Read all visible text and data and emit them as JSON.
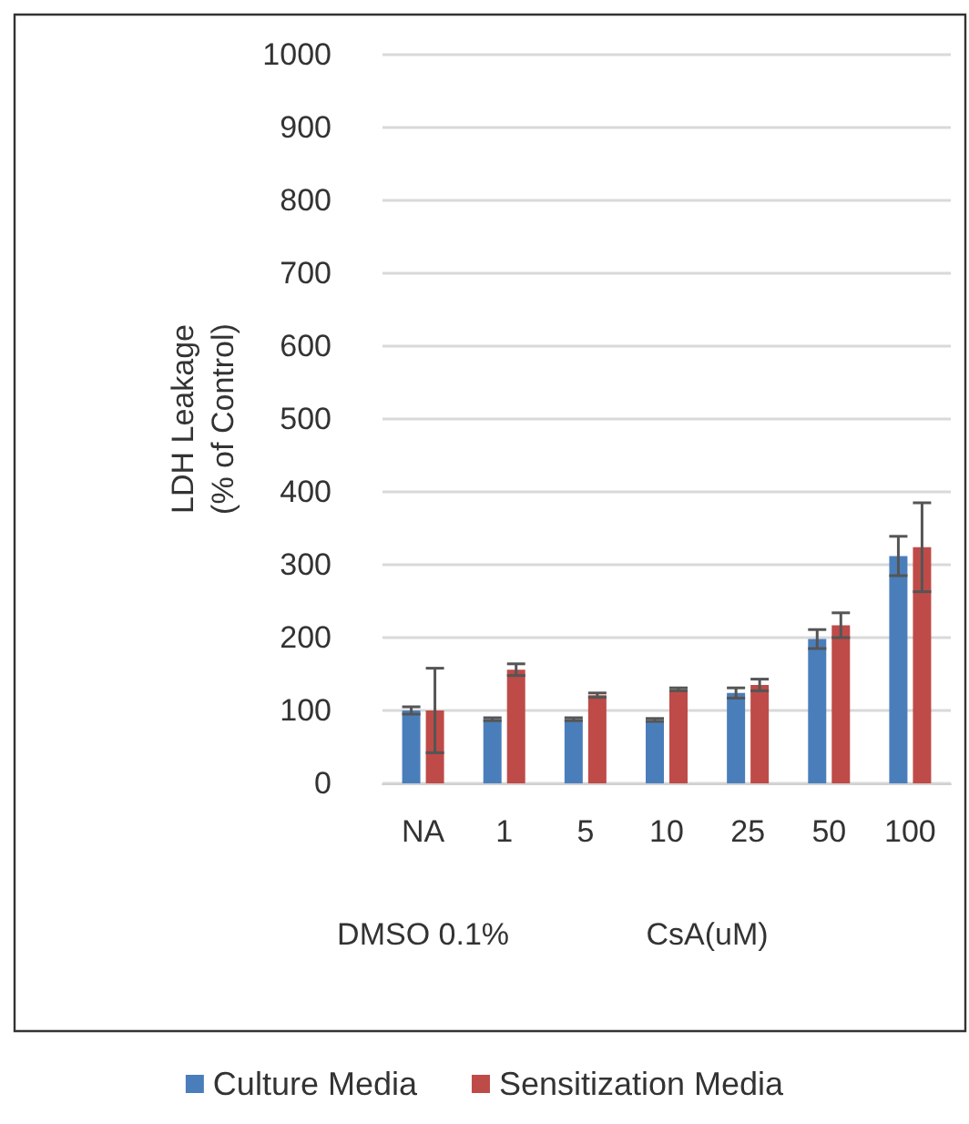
{
  "chart_data": {
    "type": "bar",
    "ylabel": "LDH Leakage\n(% of Control)",
    "categories": [
      "NA",
      "1",
      "5",
      "10",
      "25",
      "50",
      "100"
    ],
    "series": [
      {
        "name": "Culture Media",
        "color": "#4a7ebb",
        "values": [
          100,
          88,
          88,
          87,
          124,
          198,
          312
        ],
        "errors": [
          5,
          2,
          2,
          2,
          7,
          13,
          27
        ]
      },
      {
        "name": "Sensitization Media",
        "color": "#be4b48",
        "values": [
          100,
          156,
          121,
          129,
          135,
          217,
          324
        ],
        "errors": [
          58,
          8,
          3,
          2,
          8,
          17,
          61
        ]
      }
    ],
    "ylim": [
      0,
      1000
    ],
    "yticks": [
      0,
      100,
      200,
      300,
      400,
      500,
      600,
      700,
      800,
      900,
      1000
    ],
    "grid": "y",
    "legend": "bottom",
    "annotations": [
      "DMSO 0.1%",
      "CsA(uM)"
    ]
  }
}
